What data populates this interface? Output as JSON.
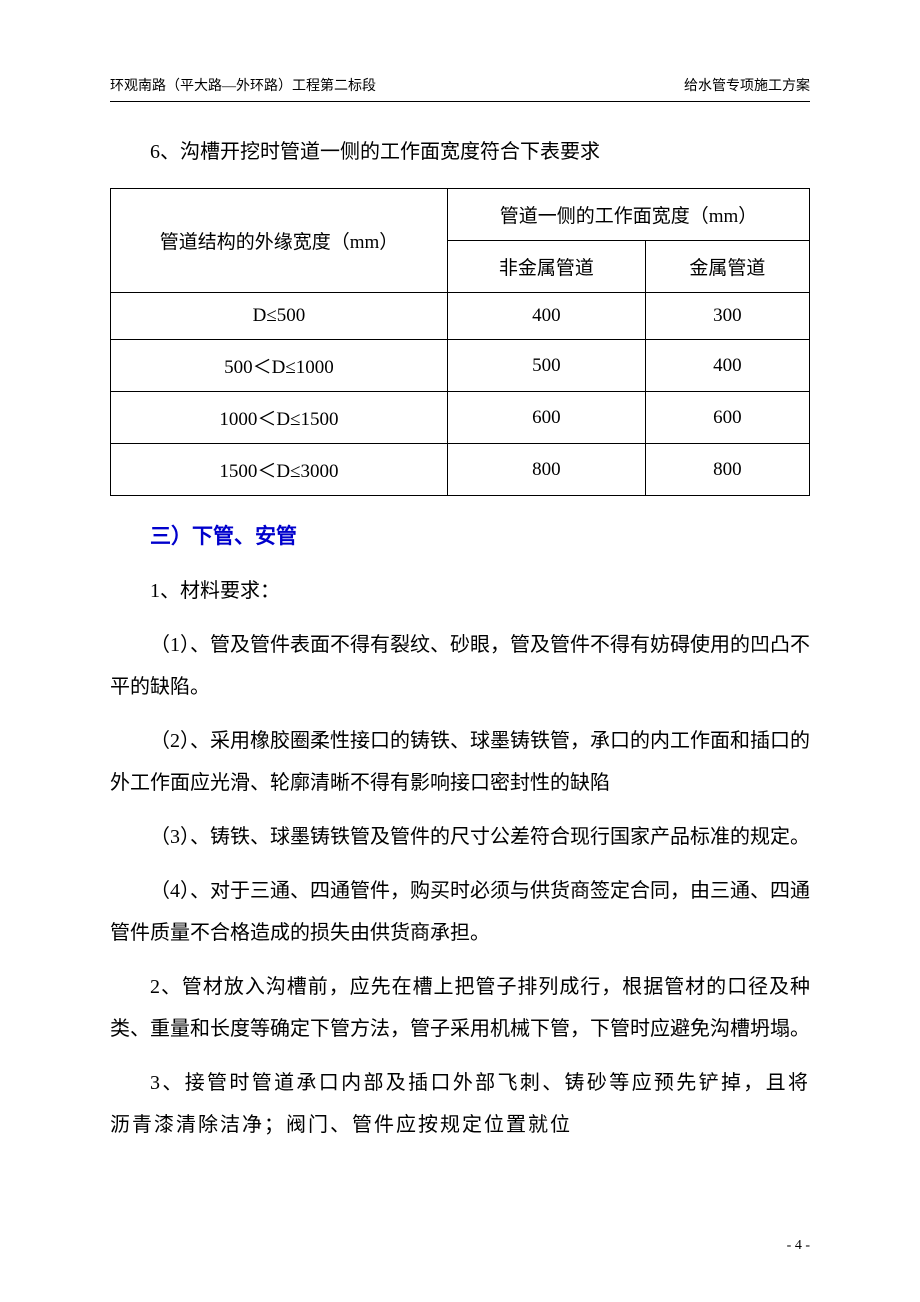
{
  "header": {
    "left": "环观南路（平大路—外环路）工程第二标段",
    "right": "给水管专项施工方案"
  },
  "intro": "6、沟槽开挖时管道一侧的工作面宽度符合下表要求",
  "table": {
    "col1_header": "管道结构的外缘宽度（mm）",
    "col2_group": "管道一侧的工作面宽度（mm）",
    "col2_sub1": "非金属管道",
    "col2_sub2": "金属管道",
    "rows": [
      {
        "c1": "D≤500",
        "c2": "400",
        "c3": "300"
      },
      {
        "c1": "500＜D≤1000",
        "c2": "500",
        "c3": "400"
      },
      {
        "c1": "1000＜D≤1500",
        "c2": "600",
        "c3": "600"
      },
      {
        "c1": "1500＜D≤3000",
        "c2": "800",
        "c3": "800"
      }
    ]
  },
  "heading": "三）下管、安管",
  "paragraphs": {
    "p1": "1、材料要求：",
    "p2": "（1）、管及管件表面不得有裂纹、砂眼，管及管件不得有妨碍使用的凹凸不平的缺陷。",
    "p3": "（2）、采用橡胶圈柔性接口的铸铁、球墨铸铁管，承口的内工作面和插口的外工作面应光滑、轮廓清晰不得有影响接口密封性的缺陷",
    "p4": "（3）、铸铁、球墨铸铁管及管件的尺寸公差符合现行国家产品标准的规定。",
    "p5": "（4）、对于三通、四通管件，购买时必须与供货商签定合同，由三通、四通管件质量不合格造成的损失由供货商承担。",
    "p6": "2、管材放入沟槽前，应先在槽上把管子排列成行，根据管材的口径及种类、重量和长度等确定下管方法，管子采用机械下管，下管时应避免沟槽坍塌。",
    "p7": "3、接管时管道承口内部及插口外部飞刺、铸砂等应预先铲掉，且将沥青漆清除洁净；阀门、管件应按规定位置就位"
  },
  "pageNumber": "- 4 -"
}
